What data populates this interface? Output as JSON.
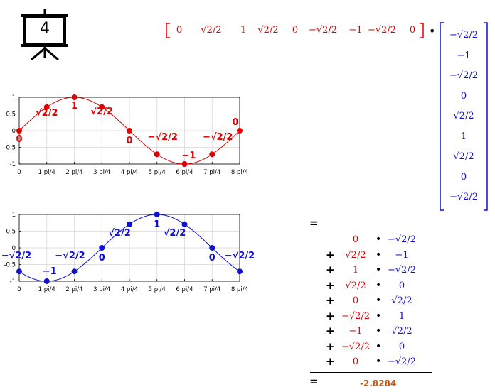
{
  "badge": {
    "number": "4",
    "icon": "presentation-board-icon"
  },
  "colors": {
    "red": "#e00000",
    "blue": "#1010d0",
    "result": "#c05a10"
  },
  "row_vector": [
    "0",
    "√2/2",
    "1",
    "√2/2",
    "0",
    "−√2/2",
    "−1",
    "−√2/2",
    "0"
  ],
  "dot_operator": "•",
  "col_vector": [
    "−√2/2",
    "−1",
    "−√2/2",
    "0",
    "√2/2",
    "1",
    "√2/2",
    "0",
    "−√2/2"
  ],
  "x_ticks": [
    "0",
    "1 pi/4",
    "2 pi/4",
    "3 pi/4",
    "4 pi/4",
    "5 pi/4",
    "6 pi/4",
    "7 pi/4",
    "8 pi/4"
  ],
  "y_ticks": [
    "1",
    "0.5",
    "0",
    "-0.5",
    "-1"
  ],
  "chart_data": [
    {
      "type": "line",
      "name": "sin",
      "x": [
        0,
        1,
        2,
        3,
        4,
        5,
        6,
        7,
        8
      ],
      "y": [
        0,
        0.7071,
        1,
        0.7071,
        0,
        -0.7071,
        -1,
        -0.7071,
        0
      ],
      "point_labels": [
        "0",
        "√2/2",
        "1",
        "√2/2",
        "0",
        "−√2/2",
        "−1",
        "−√2/2",
        "0"
      ],
      "xlim": [
        0,
        8
      ],
      "ylim": [
        -1,
        1
      ],
      "grid": true
    },
    {
      "type": "line",
      "name": "shifted",
      "x": [
        0,
        1,
        2,
        3,
        4,
        5,
        6,
        7,
        8
      ],
      "y": [
        -0.7071,
        -1,
        -0.7071,
        0,
        0.7071,
        1,
        0.7071,
        0,
        -0.7071
      ],
      "point_labels": [
        "−√2/2",
        "−1",
        "−√2/2",
        "0",
        "√2/2",
        "1",
        "√2/2",
        "0",
        "−√2/2"
      ],
      "xlim": [
        0,
        8
      ],
      "ylim": [
        -1,
        1
      ],
      "grid": true
    }
  ],
  "sum": {
    "equals": "=",
    "plus": "+",
    "dot": "•",
    "rows": [
      {
        "a": "0",
        "b": "−√2/2"
      },
      {
        "a": "√2/2",
        "b": "−1"
      },
      {
        "a": "1",
        "b": "−√2/2"
      },
      {
        "a": "√2/2",
        "b": "0"
      },
      {
        "a": "0",
        "b": "√2/2"
      },
      {
        "a": "−√2/2",
        "b": "1"
      },
      {
        "a": "−1",
        "b": "√2/2"
      },
      {
        "a": "−√2/2",
        "b": "0"
      },
      {
        "a": "0",
        "b": "−√2/2"
      }
    ],
    "result": "-2.8284"
  }
}
